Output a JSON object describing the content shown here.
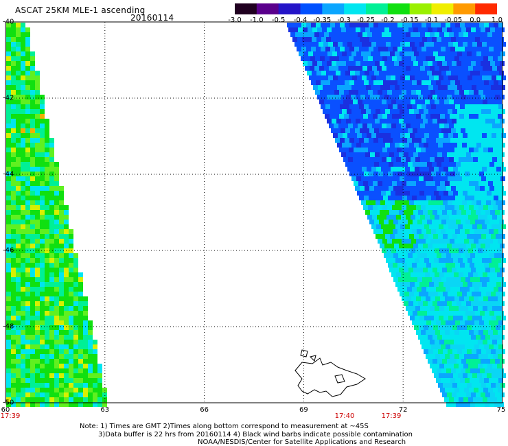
{
  "header": {
    "title": "ASCAT 25KM MLE-1 ascending",
    "date": "20160114"
  },
  "colorbar": {
    "labels": [
      "-3.0",
      "-1.0",
      "-0.5",
      "-0.4",
      "-0.35",
      "-0.3",
      "-0.25",
      "-0.2",
      "-0.15",
      "-0.1",
      "-0.05",
      "0.0",
      "1.0"
    ],
    "colors": [
      "#200020",
      "#5a008c",
      "#2414c8",
      "#0050ff",
      "#0aa6ff",
      "#00e6f0",
      "#00f096",
      "#10e010",
      "#9af000",
      "#f0ee00",
      "#ff9a00",
      "#ff2a00"
    ]
  },
  "map": {
    "lat_labels": [
      "-40",
      "-42",
      "-44",
      "-46",
      "-48",
      "-50"
    ],
    "lon_labels": [
      "60",
      "63",
      "66",
      "69",
      "72",
      "75"
    ],
    "time_labels": [
      "17:39",
      "17:40",
      "17:39"
    ],
    "grid": "dotted",
    "coastline": "Kerguelen Islands"
  },
  "footer": {
    "note1": "Note: 1) Times are GMT 2)Times along bottom correspond to measurement at ~45S",
    "note2": "3)Data buffer is 22 hrs from 20160114 4) Black wind barbs indicate possible contamination",
    "credit": "NOAA/NESDIS/Center for Satellite Applications and Research"
  }
}
